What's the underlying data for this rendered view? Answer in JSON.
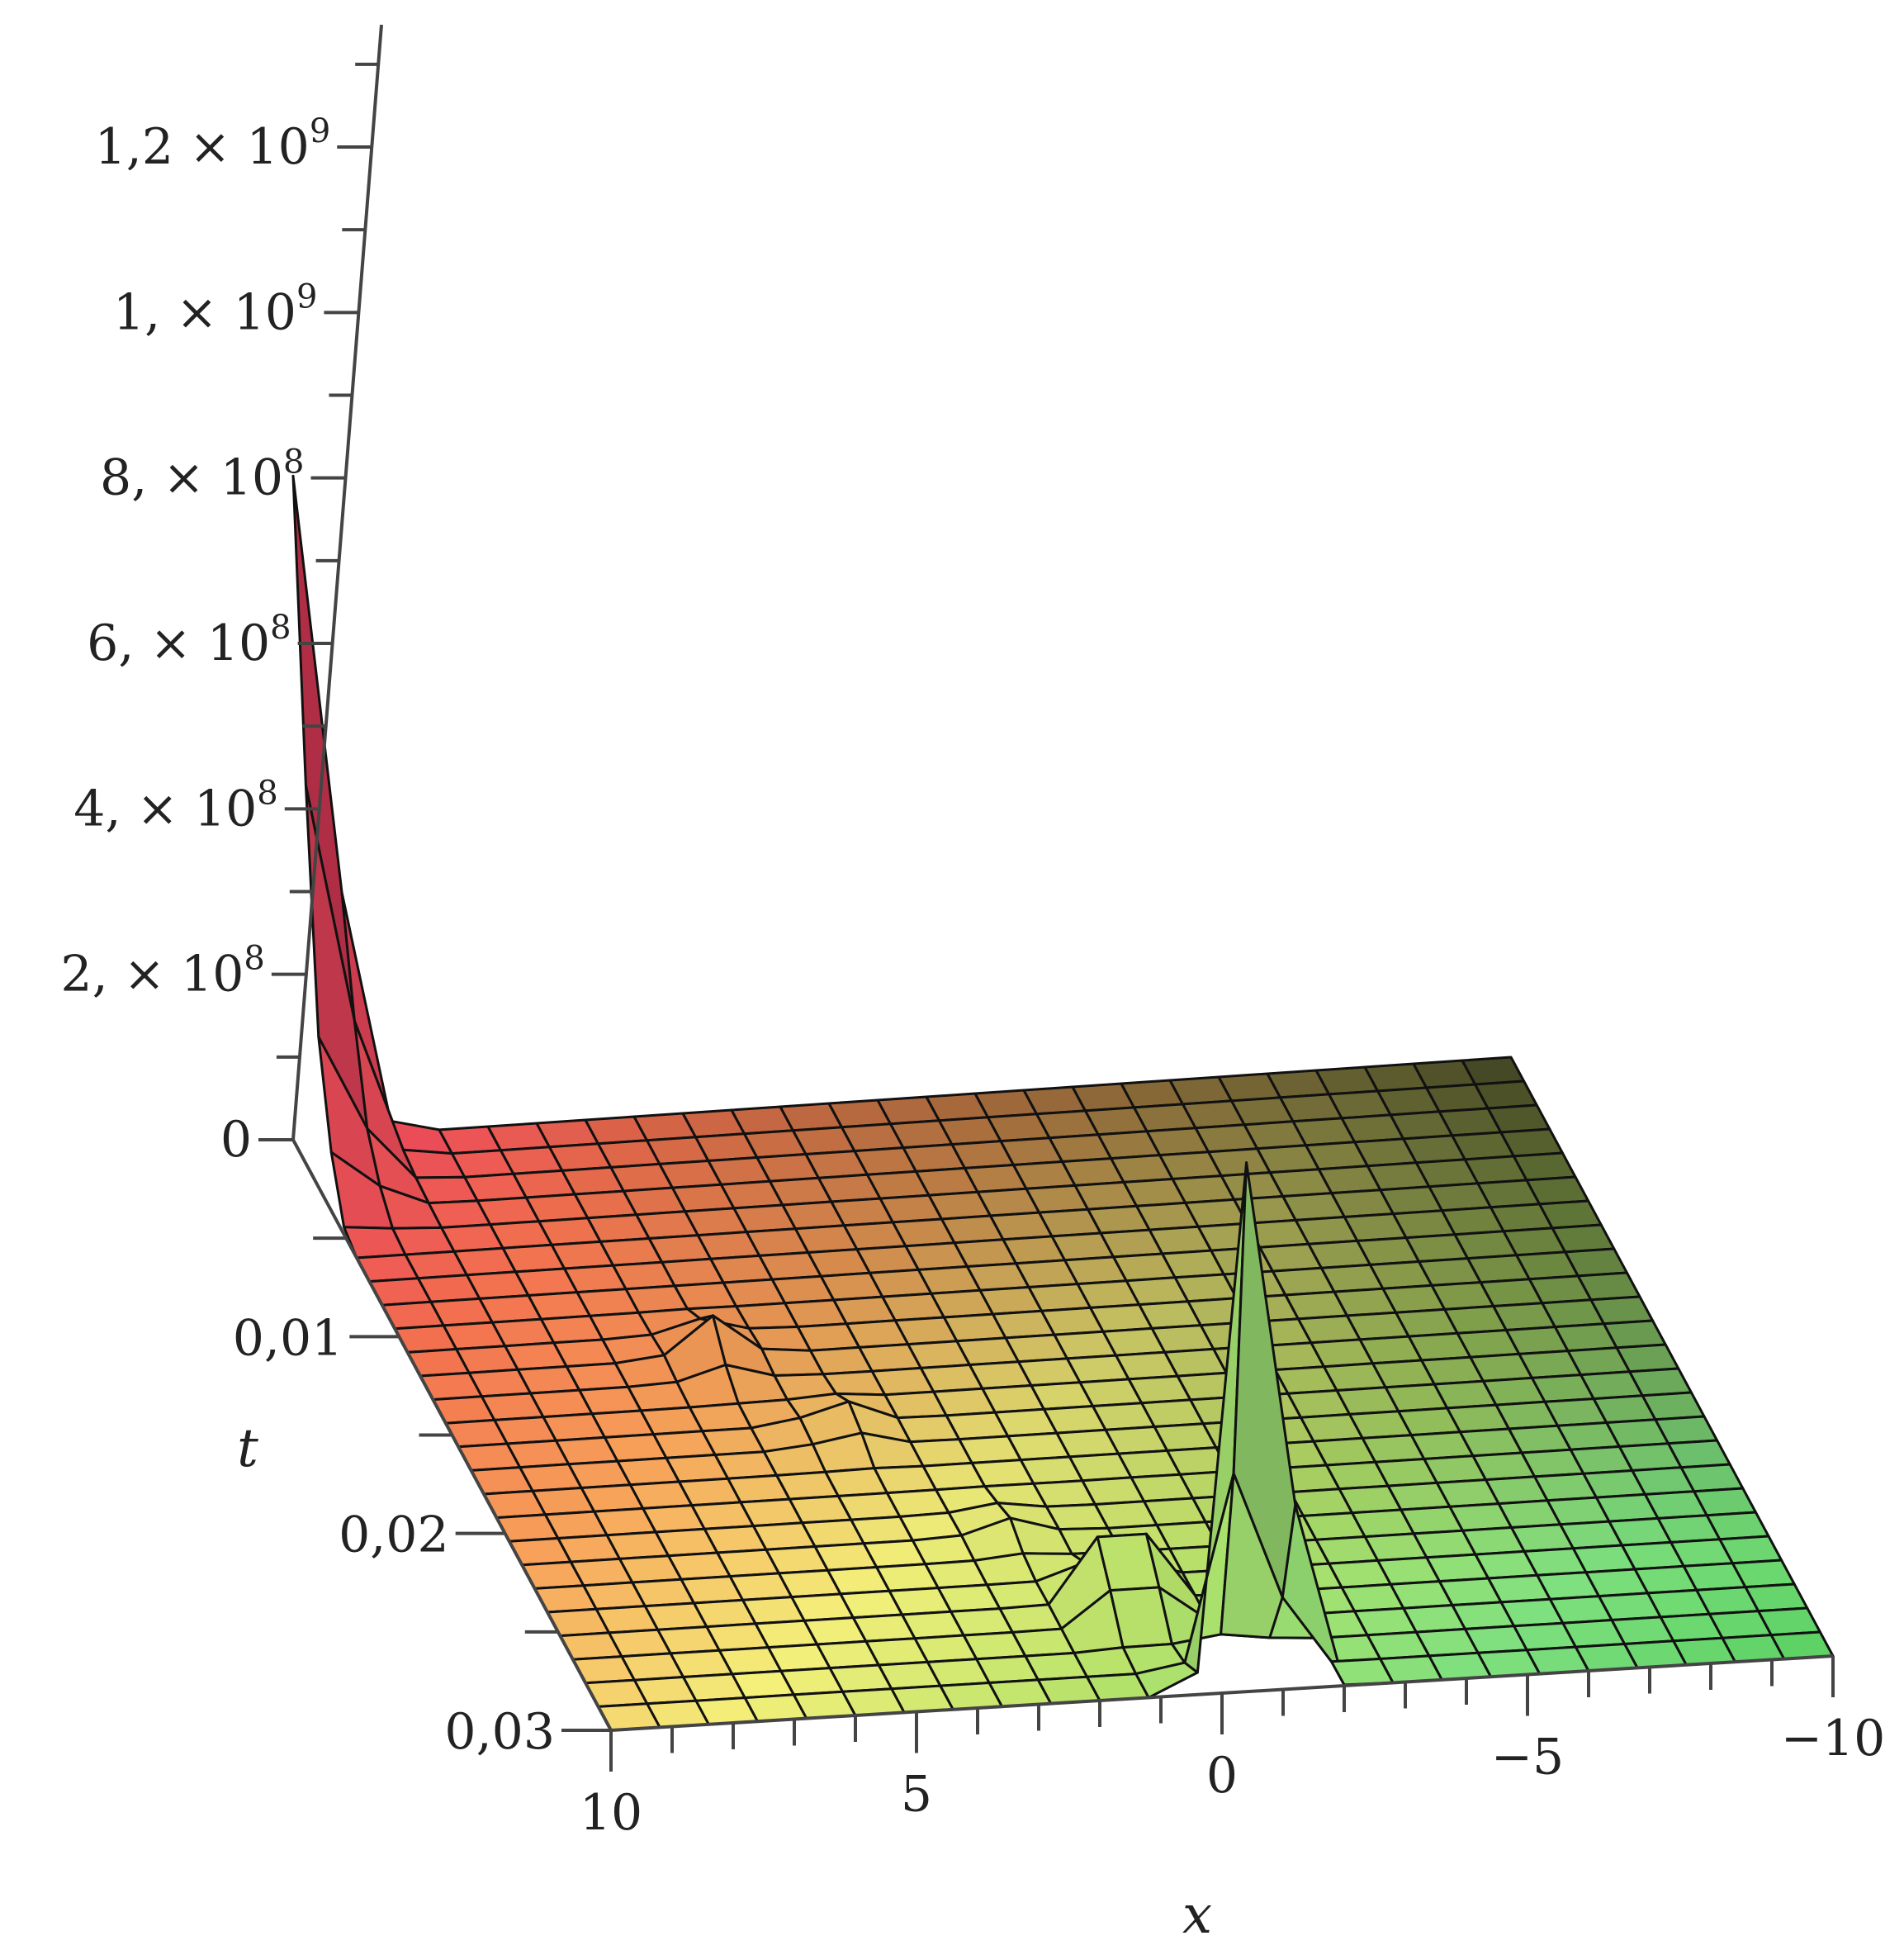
{
  "chart_data": {
    "type": "surface3d",
    "title": "",
    "x_axis": {
      "label": "x",
      "range": [
        -10,
        10
      ],
      "direction": "decreasing-left-to-right",
      "ticks": [
        {
          "value": 10,
          "label": "10"
        },
        {
          "value": 5,
          "label": "5"
        },
        {
          "value": 0,
          "label": "0"
        },
        {
          "value": -5,
          "label": "−5"
        },
        {
          "value": -10,
          "label": "−10"
        }
      ]
    },
    "t_axis": {
      "label": "t",
      "range": [
        0,
        0.03
      ],
      "ticks": [
        {
          "value": 0.01,
          "label": "0,01"
        },
        {
          "value": 0.02,
          "label": "0,02"
        },
        {
          "value": 0.03,
          "label": "0,03"
        }
      ]
    },
    "z_axis": {
      "label": "",
      "range": [
        0,
        1300000000
      ],
      "ticks": [
        {
          "value": 0,
          "label": "0",
          "exp": ""
        },
        {
          "value": 200000000,
          "label": "2, × 10",
          "exp": "8"
        },
        {
          "value": 400000000,
          "label": "4, × 10",
          "exp": "8"
        },
        {
          "value": 600000000,
          "label": "6, × 10",
          "exp": "8"
        },
        {
          "value": 800000000,
          "label": "8, × 10",
          "exp": "8"
        },
        {
          "value": 1000000000,
          "label": "1, × 10",
          "exp": "9"
        },
        {
          "value": 1200000000,
          "label": "1,2 × 10",
          "exp": "9"
        }
      ]
    },
    "surface": {
      "x_range": [
        -10,
        10
      ],
      "t_range": [
        0,
        0.03
      ],
      "grid_x_cells": 25,
      "grid_t_cells": 25,
      "peaks_at_x10_edge": [
        {
          "t": 0.0,
          "z": 750000000
        },
        {
          "t": 0.0012,
          "z": 310000000
        },
        {
          "t": 0.0024,
          "z": 120000000
        },
        {
          "t": 0.0036,
          "z": 50000000
        }
      ],
      "peaks_along_ridge": [
        {
          "x": 5.2,
          "z": 50000000
        },
        {
          "x": 3.8,
          "z": 30000000
        },
        {
          "x": 2.0,
          "z": 20000000
        },
        {
          "x": 0.8,
          "z": 140000000
        },
        {
          "x": -0.6,
          "z": 730000000
        }
      ],
      "colormap": [
        "#e8375e",
        "#f2704f",
        "#f7a35a",
        "#f4f07a",
        "#b5e26a",
        "#7fe07f",
        "#5ad062"
      ]
    }
  }
}
